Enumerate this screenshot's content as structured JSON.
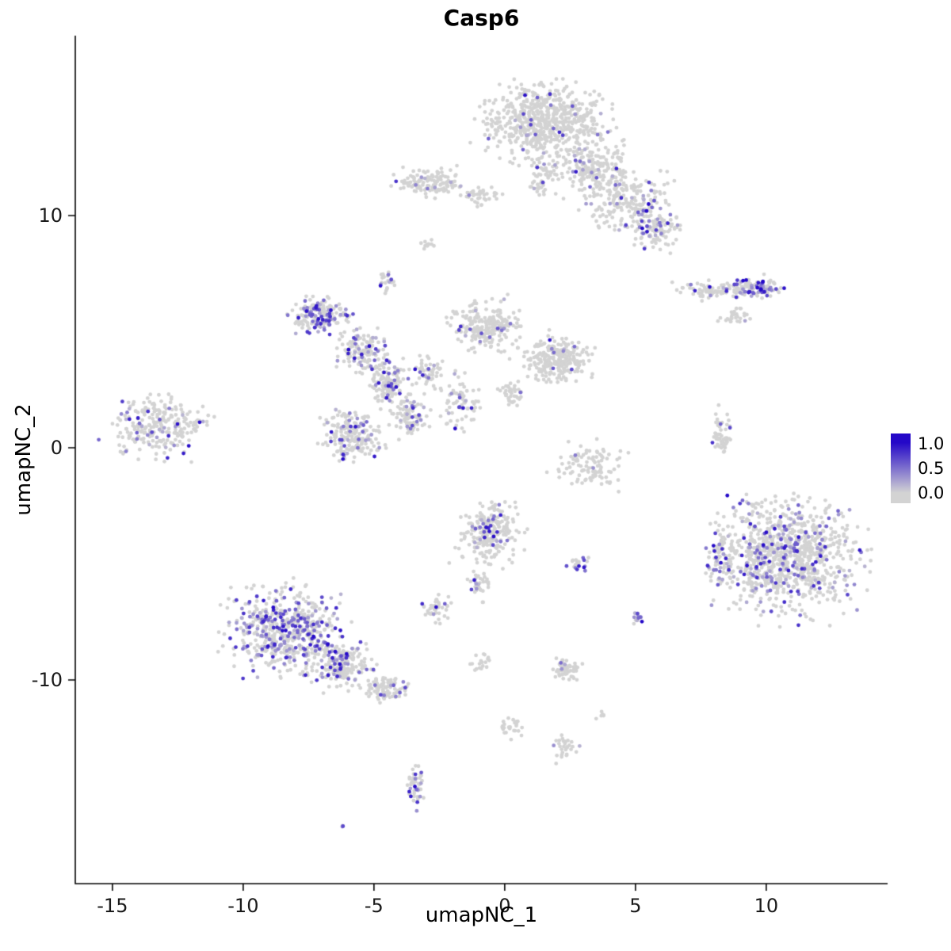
{
  "chart_data": {
    "type": "scatter",
    "title": "Casp6",
    "xlabel": "umapNC_1",
    "ylabel": "umapNC_2",
    "x_ticks": [
      -15,
      -10,
      -5,
      0,
      5,
      10
    ],
    "y_ticks": [
      -10,
      0,
      10
    ],
    "xlim": [
      -16.42,
      14.64
    ],
    "ylim": [
      -18.77,
      17.75
    ],
    "grid": false,
    "legend_position": "right",
    "colors": {
      "low": "#d3d3d3",
      "high": "#2408c8"
    },
    "legend": {
      "labels": [
        "1.0",
        "0.5",
        "0.0"
      ]
    },
    "point_radius": 2.4,
    "clusters": [
      {
        "cx": 1.6,
        "cy": 14.0,
        "rx": 2.1,
        "ry": 1.5,
        "n": 650,
        "f": 0.05
      },
      {
        "cx": 3.4,
        "cy": 12.0,
        "rx": 1.2,
        "ry": 1.0,
        "n": 180,
        "f": 0.06
      },
      {
        "cx": 4.8,
        "cy": 10.6,
        "rx": 1.4,
        "ry": 1.2,
        "n": 200,
        "f": 0.08
      },
      {
        "cx": 5.7,
        "cy": 9.5,
        "rx": 0.9,
        "ry": 0.8,
        "n": 110,
        "f": 0.12
      },
      {
        "cx": 1.5,
        "cy": 11.8,
        "rx": 0.5,
        "ry": 0.9,
        "n": 60,
        "f": 0.08
      },
      {
        "cx": -2.9,
        "cy": 11.4,
        "rx": 1.2,
        "ry": 0.55,
        "n": 130,
        "f": 0.06
      },
      {
        "cx": -1.0,
        "cy": 10.9,
        "rx": 0.8,
        "ry": 0.4,
        "n": 40,
        "f": 0.03
      },
      {
        "cx": -2.9,
        "cy": 8.75,
        "rx": 0.25,
        "ry": 0.2,
        "n": 12,
        "f": 0
      },
      {
        "cx": -4.55,
        "cy": 7.2,
        "rx": 0.3,
        "ry": 0.45,
        "n": 25,
        "f": 0.3
      },
      {
        "cx": 7.8,
        "cy": 6.8,
        "rx": 1.0,
        "ry": 0.35,
        "n": 70,
        "f": 0.12
      },
      {
        "cx": 9.5,
        "cy": 6.9,
        "rx": 0.9,
        "ry": 0.4,
        "n": 110,
        "f": 0.5,
        "vmax": 1.2
      },
      {
        "cx": 8.8,
        "cy": 5.6,
        "rx": 0.45,
        "ry": 0.3,
        "n": 30,
        "f": 0.03
      },
      {
        "cx": -7.1,
        "cy": 5.7,
        "rx": 1.0,
        "ry": 0.7,
        "n": 170,
        "f": 0.35
      },
      {
        "cx": -5.5,
        "cy": 4.2,
        "rx": 0.8,
        "ry": 0.8,
        "n": 130,
        "f": 0.25
      },
      {
        "cx": -4.5,
        "cy": 2.8,
        "rx": 0.7,
        "ry": 0.9,
        "n": 140,
        "f": 0.22
      },
      {
        "cx": -3.6,
        "cy": 1.4,
        "rx": 0.6,
        "ry": 0.8,
        "n": 90,
        "f": 0.2
      },
      {
        "cx": -5.8,
        "cy": 0.5,
        "rx": 1.1,
        "ry": 1.0,
        "n": 200,
        "f": 0.12
      },
      {
        "cx": -2.9,
        "cy": 3.3,
        "rx": 0.5,
        "ry": 0.6,
        "n": 50,
        "f": 0.15
      },
      {
        "cx": -0.7,
        "cy": 5.2,
        "rx": 1.2,
        "ry": 1.0,
        "n": 220,
        "f": 0.1
      },
      {
        "cx": -1.8,
        "cy": 1.9,
        "rx": 0.7,
        "ry": 1.0,
        "n": 70,
        "f": 0.15
      },
      {
        "cx": 1.95,
        "cy": 3.8,
        "rx": 1.1,
        "ry": 0.9,
        "n": 260,
        "f": 0.04
      },
      {
        "cx": 0.3,
        "cy": 2.3,
        "rx": 0.5,
        "ry": 0.5,
        "n": 40,
        "f": 0.05
      },
      {
        "cx": -13.2,
        "cy": 0.9,
        "rx": 1.6,
        "ry": 1.1,
        "n": 260,
        "f": 0.18
      },
      {
        "cx": 3.3,
        "cy": -0.8,
        "rx": 1.2,
        "ry": 0.9,
        "n": 100,
        "f": 0.02
      },
      {
        "cx": 8.35,
        "cy": 0.6,
        "rx": 0.35,
        "ry": 1.0,
        "n": 55,
        "f": 0.15
      },
      {
        "cx": 10.8,
        "cy": -4.7,
        "rx": 2.3,
        "ry": 2.2,
        "n": 950,
        "f": 0.17
      },
      {
        "cx": 8.3,
        "cy": -4.7,
        "rx": 0.5,
        "ry": 0.9,
        "n": 70,
        "f": 0.2
      },
      {
        "cx": -0.5,
        "cy": -3.6,
        "rx": 1.1,
        "ry": 1.2,
        "n": 230,
        "f": 0.15
      },
      {
        "cx": -1.0,
        "cy": -5.9,
        "rx": 0.4,
        "ry": 0.6,
        "n": 35,
        "f": 0.1
      },
      {
        "cx": 2.8,
        "cy": -5.0,
        "rx": 0.35,
        "ry": 0.3,
        "n": 22,
        "f": 0.35
      },
      {
        "cx": -2.6,
        "cy": -6.9,
        "rx": 0.5,
        "ry": 0.5,
        "n": 45,
        "f": 0.12
      },
      {
        "cx": -8.4,
        "cy": -7.9,
        "rx": 1.9,
        "ry": 1.6,
        "n": 550,
        "f": 0.3
      },
      {
        "cx": -6.3,
        "cy": -9.4,
        "rx": 1.2,
        "ry": 0.9,
        "n": 200,
        "f": 0.22
      },
      {
        "cx": -4.6,
        "cy": -10.3,
        "rx": 0.8,
        "ry": 0.5,
        "n": 90,
        "f": 0.15
      },
      {
        "cx": 5.05,
        "cy": -7.3,
        "rx": 0.25,
        "ry": 0.35,
        "n": 14,
        "f": 0.85,
        "vmax": 1.1
      },
      {
        "cx": 2.4,
        "cy": -9.6,
        "rx": 0.5,
        "ry": 0.45,
        "n": 55,
        "f": 0.1
      },
      {
        "cx": -0.9,
        "cy": -9.3,
        "rx": 0.4,
        "ry": 0.5,
        "n": 18,
        "f": 0.05
      },
      {
        "cx": 0.1,
        "cy": -12.0,
        "rx": 0.5,
        "ry": 0.4,
        "n": 25,
        "f": 0.04
      },
      {
        "cx": 2.3,
        "cy": -12.9,
        "rx": 0.45,
        "ry": 0.5,
        "n": 30,
        "f": 0.08
      },
      {
        "cx": -3.4,
        "cy": -14.6,
        "rx": 0.3,
        "ry": 0.8,
        "n": 45,
        "f": 0.3
      },
      {
        "cx": -6.2,
        "cy": -16.3,
        "rx": 0.15,
        "ry": 0.15,
        "n": 3,
        "f": 0.5
      },
      {
        "cx": 3.6,
        "cy": -11.6,
        "rx": 0.3,
        "ry": 0.2,
        "n": 6,
        "f": 0
      }
    ]
  }
}
